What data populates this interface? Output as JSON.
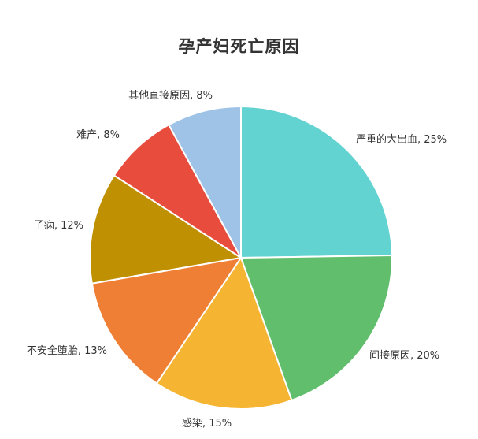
{
  "chart_data": {
    "type": "pie",
    "title": "孕产妇死亡原因",
    "slices": [
      {
        "label": "严重的大出血, 25%",
        "value": 25,
        "color": "#63D3D1"
      },
      {
        "label": "间接原因, 20%",
        "value": 20,
        "color": "#60BE6C"
      },
      {
        "label": "感染, 15%",
        "value": 15,
        "color": "#F5B431"
      },
      {
        "label": "不安全堕胎, 13%",
        "value": 13,
        "color": "#EE7F34"
      },
      {
        "label": "子痫, 12%",
        "value": 12,
        "color": "#BF9002"
      },
      {
        "label": "难产, 8%",
        "value": 8,
        "color": "#E84C3C"
      },
      {
        "label": "其他直接原因, 8%",
        "value": 8,
        "color": "#9FC2E7"
      }
    ]
  }
}
